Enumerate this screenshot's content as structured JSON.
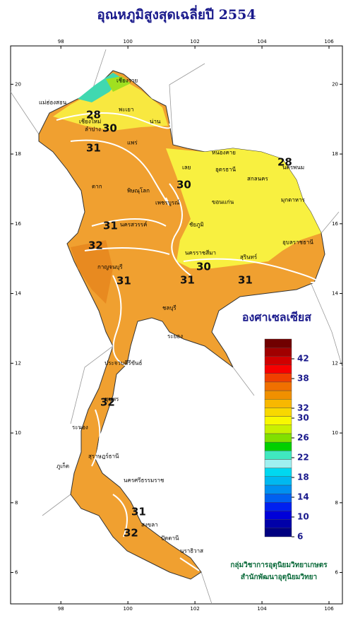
{
  "title": "อุณหภูมิสูงสุดเฉลี่ยปี 2554",
  "map": {
    "xlim": [
      96.5,
      106.4
    ],
    "ylim": [
      5.1,
      21.1
    ],
    "xticks": [
      98,
      100,
      102,
      104,
      106
    ],
    "yticks": [
      6,
      8,
      10,
      12,
      14,
      16,
      18,
      20
    ]
  },
  "legend": {
    "title": "องศาเซลเซียส",
    "lim": [
      6,
      46
    ],
    "colors": [
      "#000080",
      "#0000a8",
      "#0000d8",
      "#0020f0",
      "#0060f0",
      "#0090f0",
      "#00b8f0",
      "#00d8f0",
      "#a0f0f0",
      "#40e8c0",
      "#00d000",
      "#80e000",
      "#c8f000",
      "#f8f800",
      "#f8d800",
      "#f8b800",
      "#f09000",
      "#f07000",
      "#f04000",
      "#f80000",
      "#d00000",
      "#a00000",
      "#700000"
    ],
    "ticks": [
      42,
      38,
      32,
      30,
      26,
      22,
      18,
      14,
      10,
      6
    ]
  },
  "credit": [
    "กลุ่มวิชาการอุตุนิยมวิทยาเกษตร",
    "สำนักพัฒนาอุตุนิยมวิทยา"
  ],
  "contours": [
    "28",
    "30",
    "31",
    "30",
    "28",
    "31",
    "32",
    "30",
    "31",
    "31",
    "31",
    "32",
    "31",
    "32"
  ],
  "provinces": [
    "เชียงราย",
    "พะเยา",
    "น่าน",
    "เชียงใหม่",
    "ลำปาง",
    "แม่ฮ่องสอน",
    "แพร่",
    "หนองคาย",
    "อุดรธานี",
    "สกลนคร",
    "นครพนม",
    "มุกดาหาร",
    "เลย",
    "ขอนแก่น",
    "ตาก",
    "พิษณุโลก",
    "เพชรบูรณ์",
    "นครสวรรค์",
    "ชัยภูมิ",
    "นครราชสีมา",
    "อุบลราชธานี",
    "สุรินทร์",
    "กาญจนบุรี",
    "ชลบุรี",
    "ระยอง",
    "ประจวบคีรีขันธ์",
    "ชุมพร",
    "ระนอง",
    "สุราษฎร์ธานี",
    "นครศรีธรรมราช",
    "ภูเก็ต",
    "สงขลา",
    "ปัตตานี",
    "นราธิวาส"
  ]
}
